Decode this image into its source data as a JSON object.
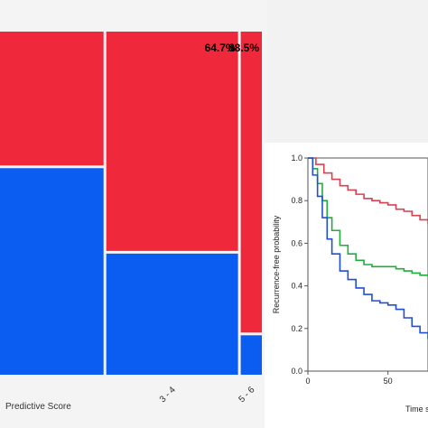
{
  "chart_data": [
    {
      "type": "mosaic",
      "xlabel": "Predictive Score",
      "categories": [
        "",
        "3 - 4",
        "5 - 6"
      ],
      "column_shares": [
        0.535,
        0.395,
        0.07
      ],
      "series": [
        {
          "color": "#f0283c",
          "values": [
            0.398,
            0.647,
            0.885
          ]
        },
        {
          "color": "#0b5cf0",
          "values": [
            0.602,
            0.353,
            0.115
          ]
        }
      ],
      "data_labels": [
        "",
        "64.7%",
        "88.5%"
      ]
    },
    {
      "type": "line",
      "ylabel": "Recurrence-free probability",
      "xlabel": "Time s",
      "xlim": [
        0,
        75
      ],
      "ylim": [
        0,
        1.0
      ],
      "yticks": [
        0,
        0.2,
        0.4,
        0.6,
        0.8,
        1.0
      ],
      "ytick_labels": [
        "0.0",
        "0.2",
        "0.4",
        "0.6",
        "0.8",
        "1.0"
      ],
      "xticks": [
        0,
        50
      ],
      "xtick_labels": [
        "0",
        "50"
      ],
      "series": [
        {
          "color": "#d94050",
          "x": [
            0,
            5,
            10,
            15,
            20,
            25,
            30,
            35,
            40,
            45,
            50,
            55,
            60,
            65,
            70,
            75
          ],
          "y": [
            1.0,
            0.97,
            0.93,
            0.9,
            0.87,
            0.85,
            0.83,
            0.81,
            0.8,
            0.79,
            0.78,
            0.76,
            0.75,
            0.73,
            0.71,
            0.69
          ]
        },
        {
          "color": "#1fae3c",
          "x": [
            0,
            3,
            6,
            9,
            12,
            15,
            20,
            25,
            30,
            35,
            40,
            45,
            50,
            55,
            60,
            65,
            70,
            75
          ],
          "y": [
            1.0,
            0.95,
            0.88,
            0.8,
            0.72,
            0.66,
            0.59,
            0.55,
            0.52,
            0.5,
            0.49,
            0.49,
            0.49,
            0.48,
            0.47,
            0.46,
            0.45,
            0.44
          ]
        },
        {
          "color": "#1f4fd6",
          "x": [
            0,
            3,
            6,
            9,
            12,
            15,
            20,
            25,
            30,
            35,
            40,
            45,
            50,
            55,
            60,
            65,
            70,
            75
          ],
          "y": [
            1.0,
            0.92,
            0.82,
            0.72,
            0.62,
            0.55,
            0.47,
            0.43,
            0.39,
            0.36,
            0.33,
            0.32,
            0.31,
            0.29,
            0.25,
            0.21,
            0.18,
            0.15
          ]
        }
      ]
    }
  ]
}
